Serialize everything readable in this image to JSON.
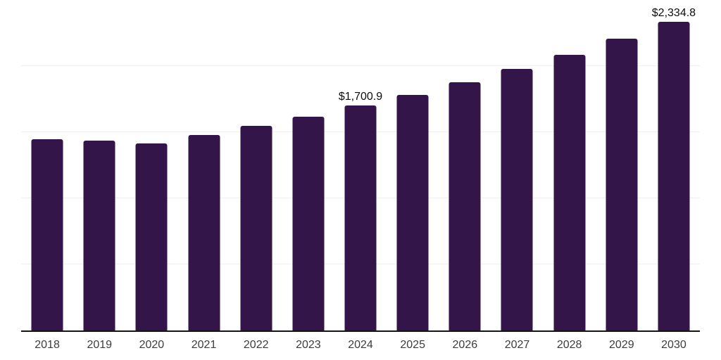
{
  "page": {
    "background_color": "#ffffff"
  },
  "chart_data": {
    "type": "bar",
    "title": "",
    "xlabel": "",
    "ylabel": "",
    "categories": [
      "2018",
      "2019",
      "2020",
      "2021",
      "2022",
      "2023",
      "2024",
      "2025",
      "2026",
      "2027",
      "2028",
      "2029",
      "2030"
    ],
    "values": [
      1447,
      1437,
      1415,
      1478,
      1548,
      1617,
      1700.9,
      1782,
      1877,
      1979,
      2085,
      2207,
      2334.8
    ],
    "data_labels": [
      {
        "index": 6,
        "text": "$1,700.9"
      },
      {
        "index": 12,
        "text": "$2,334.8"
      }
    ],
    "ylim": [
      0,
      2500
    ],
    "gridlines": [
      500,
      1000,
      1500,
      2000,
      2500
    ],
    "grid_on": true,
    "legend_position": "none",
    "bar_color": "#331549",
    "grid_color": "#f0f0f0",
    "axis_color": "#141414",
    "tick_label_color": "#3d3d3d",
    "data_label_color": "#0d0d0d"
  }
}
